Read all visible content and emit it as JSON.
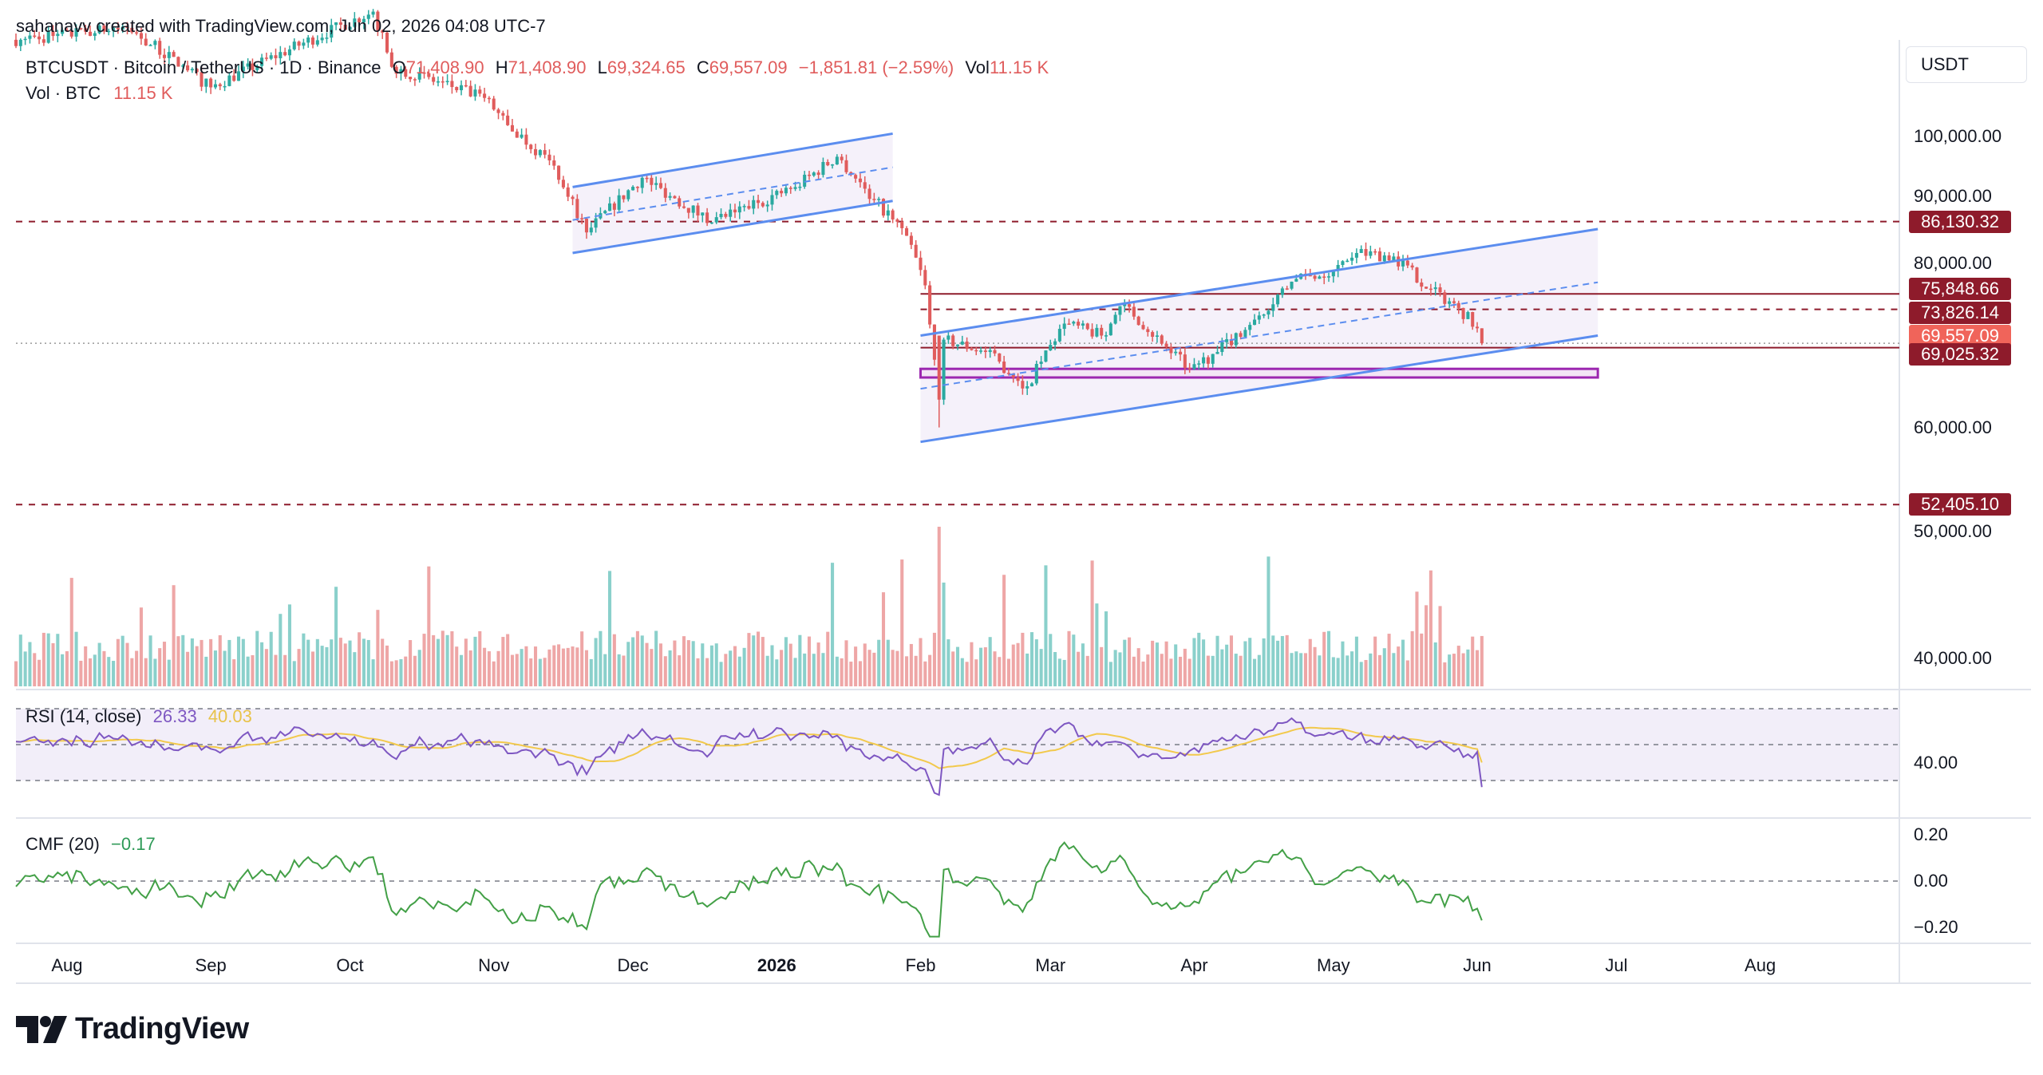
{
  "header": {
    "attribution": "sahanavv created with TradingView.com, Jun 02, 2026 04:08 UTC-7",
    "symbol": "BTCUSDT · Bitcoin / TetherUS · 1D · Binance",
    "open_label": "O",
    "open_value": "71,408.90",
    "high_label": "H",
    "high_value": "71,408.90",
    "low_label": "L",
    "low_value": "69,324.65",
    "close_label": "C",
    "close_value": "69,557.09",
    "change": "−1,851.81 (−2.59%)",
    "vol_label": "Vol",
    "vol_value": "11.15 K",
    "vol_line_label": "Vol · BTC",
    "vol_line_value": "11.15 K"
  },
  "currency": "USDT",
  "rsi_legend": {
    "label": "RSI (14, close)",
    "rsi": "26.33",
    "ma": "40.03"
  },
  "cmf_legend": {
    "label": "CMF (20)",
    "value": "−0.17"
  },
  "brand": "TradingView",
  "price_tags": [
    {
      "label": "86,130.32",
      "value": 86130.32,
      "color": "#8e1b2b"
    },
    {
      "label": "75,848.66",
      "value": 75848.66,
      "color": "#8e1b2b"
    },
    {
      "label": "73,826.14",
      "value": 73826.14,
      "color": "#8e1b2b"
    },
    {
      "label": "69,557.09",
      "value": 69557.09,
      "color": "#f0645a"
    },
    {
      "label": "69,025.32",
      "value": 69025.32,
      "color": "#8e1b2b"
    },
    {
      "label": "52,405.10",
      "value": 52405.1,
      "color": "#8e1b2b"
    }
  ],
  "colors": {
    "up": "#2aa9a0",
    "down": "#e05c5c",
    "channel": "#5b8def",
    "zone": "#9c27b0",
    "level": "#8e1b2b",
    "rsi": "#7e57c2",
    "rsi_ma": "#f2c94c",
    "cmf": "#43a047"
  },
  "chart_data": [
    {
      "type": "candlestick",
      "title": "BTCUSDT · Bitcoin / TetherUS · 1D · Binance",
      "y_axis": {
        "unit": "USDT",
        "scale": "log",
        "ticks": [
          "100,000.00",
          "90,000.00",
          "80,000.00",
          "60,000.00",
          "50,000.00",
          "40,000.00"
        ],
        "tick_values": [
          100000,
          90000,
          80000,
          60000,
          50000,
          40000
        ]
      },
      "x_axis": {
        "ticks": [
          "Aug",
          "Sep",
          "Oct",
          "Nov",
          "Dec",
          "2026",
          "Feb",
          "Mar",
          "Apr",
          "May",
          "Jun",
          "Jul",
          "Aug"
        ],
        "range": [
          "2025-07-21",
          "2026-08-31"
        ]
      },
      "price_anchors": [
        {
          "date": "2025-07-22",
          "close": 118500
        },
        {
          "date": "2025-08-14",
          "close": 121000
        },
        {
          "date": "2025-09-01",
          "close": 109000
        },
        {
          "date": "2025-10-06",
          "close": 124500
        },
        {
          "date": "2025-10-10",
          "close": 113000
        },
        {
          "date": "2025-10-30",
          "close": 107000
        },
        {
          "date": "2025-11-04",
          "close": 102000
        },
        {
          "date": "2025-11-14",
          "close": 95000
        },
        {
          "date": "2025-11-21",
          "close": 84500
        },
        {
          "date": "2025-12-03",
          "close": 93000
        },
        {
          "date": "2025-12-18",
          "close": 86000
        },
        {
          "date": "2026-01-05",
          "close": 91500
        },
        {
          "date": "2026-01-14",
          "close": 96500
        },
        {
          "date": "2026-01-22",
          "close": 89500
        },
        {
          "date": "2026-01-29",
          "close": 84000
        },
        {
          "date": "2026-02-02",
          "close": 77000
        },
        {
          "date": "2026-02-05",
          "close": 63000
        },
        {
          "date": "2026-02-06",
          "close": 70000
        },
        {
          "date": "2026-02-15",
          "close": 68500
        },
        {
          "date": "2026-02-24",
          "close": 64500
        },
        {
          "date": "2026-03-04",
          "close": 72000
        },
        {
          "date": "2026-03-12",
          "close": 70500
        },
        {
          "date": "2026-03-17",
          "close": 74500
        },
        {
          "date": "2026-03-25",
          "close": 69500
        },
        {
          "date": "2026-03-31",
          "close": 66500
        },
        {
          "date": "2026-04-06",
          "close": 68500
        },
        {
          "date": "2026-04-14",
          "close": 72500
        },
        {
          "date": "2026-04-22",
          "close": 77500
        },
        {
          "date": "2026-05-01",
          "close": 79000
        },
        {
          "date": "2026-05-06",
          "close": 81500
        },
        {
          "date": "2026-05-14",
          "close": 81000
        },
        {
          "date": "2026-05-22",
          "close": 76500
        },
        {
          "date": "2026-05-28",
          "close": 74000
        },
        {
          "date": "2026-06-01",
          "close": 71408.9
        },
        {
          "date": "2026-06-02",
          "close": 69557.09
        }
      ],
      "last_candle": {
        "date": "2026-06-02",
        "open": 71408.9,
        "high": 71408.9,
        "low": 69324.65,
        "close": 69557.09,
        "change": -1851.81,
        "change_pct": -2.59
      },
      "horizontal_levels": [
        86130.32,
        75848.66,
        73826.14,
        69025.32,
        52405.1
      ],
      "channels": [
        {
          "upper": [
            [
              "2025-11-18",
              91500
            ],
            [
              "2026-01-26",
              100500
            ]
          ],
          "lower": [
            [
              "2025-11-18",
              81500
            ],
            [
              "2026-01-26",
              89300
            ]
          ]
        },
        {
          "upper": [
            [
              "2026-02-01",
              70500
            ],
            [
              "2026-06-27",
              85000
            ]
          ],
          "lower": [
            [
              "2026-02-01",
              58500
            ],
            [
              "2026-06-27",
              70500
            ]
          ]
        }
      ],
      "support_zone": {
        "from": "2026-02-01",
        "to": "2026-06-27",
        "low": 65500,
        "high": 66500
      },
      "volume": {
        "label": "Vol · BTC",
        "last": "11.15 K",
        "peak_date": "2026-02-05"
      }
    },
    {
      "type": "line",
      "title": "RSI (14, close)",
      "series": [
        {
          "name": "RSI",
          "last": 26.33
        },
        {
          "name": "RSI MA",
          "last": 40.03
        }
      ],
      "y_ticks": [
        "40.00"
      ],
      "bands": [
        70,
        50,
        30
      ]
    },
    {
      "type": "line",
      "title": "CMF (20)",
      "series": [
        {
          "name": "CMF",
          "last": -0.17
        }
      ],
      "y_ticks": [
        "0.20",
        "0.00",
        "−0.20"
      ]
    }
  ]
}
